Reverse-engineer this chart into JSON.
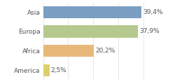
{
  "categories": [
    "America",
    "Africa",
    "Europa",
    "Asia"
  ],
  "values": [
    2.5,
    20.2,
    37.9,
    39.4
  ],
  "labels": [
    "2,5%",
    "20,2%",
    "37,9%",
    "39,4%"
  ],
  "bar_colors": [
    "#ddd06a",
    "#e8b87a",
    "#b5c98e",
    "#7a9fc2"
  ],
  "xlim": [
    0,
    47
  ],
  "background_color": "#ffffff",
  "bar_height": 0.62,
  "label_fontsize": 6.5,
  "category_fontsize": 6.5,
  "grid_color": "#dddddd",
  "text_color": "#555555"
}
